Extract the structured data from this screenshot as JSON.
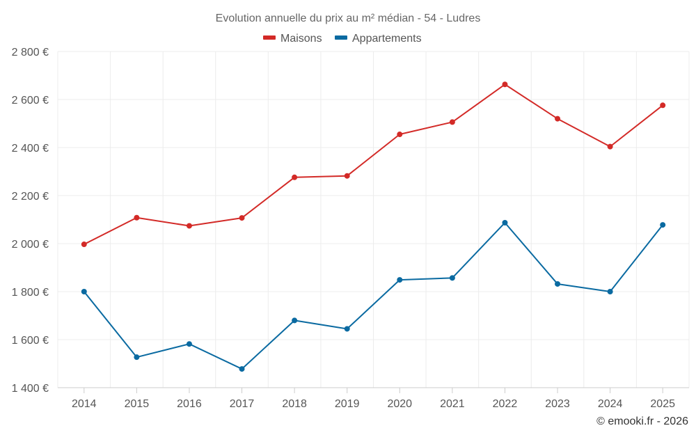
{
  "chart_data": {
    "type": "line",
    "title": "Evolution annuelle du prix au m² médian - 54 - Ludres",
    "categories": [
      "2014",
      "2015",
      "2016",
      "2017",
      "2018",
      "2019",
      "2020",
      "2021",
      "2022",
      "2023",
      "2024",
      "2025"
    ],
    "series": [
      {
        "name": "Maisons",
        "color": "#d32a27",
        "values": [
          1997,
          2108,
          2074,
          2107,
          2276,
          2282,
          2455,
          2506,
          2663,
          2520,
          2404,
          2576
        ]
      },
      {
        "name": "Appartements",
        "color": "#0a6aa1",
        "values": [
          1800,
          1527,
          1582,
          1478,
          1680,
          1645,
          1849,
          1857,
          2087,
          1832,
          1800,
          2078
        ]
      }
    ],
    "yticks": [
      "1 400 €",
      "1 600 €",
      "1 800 €",
      "2 000 €",
      "2 200 €",
      "2 400 €",
      "2 600 €",
      "2 800 €"
    ],
    "ytick_values": [
      1400,
      1600,
      1800,
      2000,
      2200,
      2400,
      2600,
      2800
    ],
    "ylim": [
      1400,
      2800
    ],
    "legend_position": "top-center",
    "grid": true
  },
  "credit": "© emooki.fr - 2026"
}
